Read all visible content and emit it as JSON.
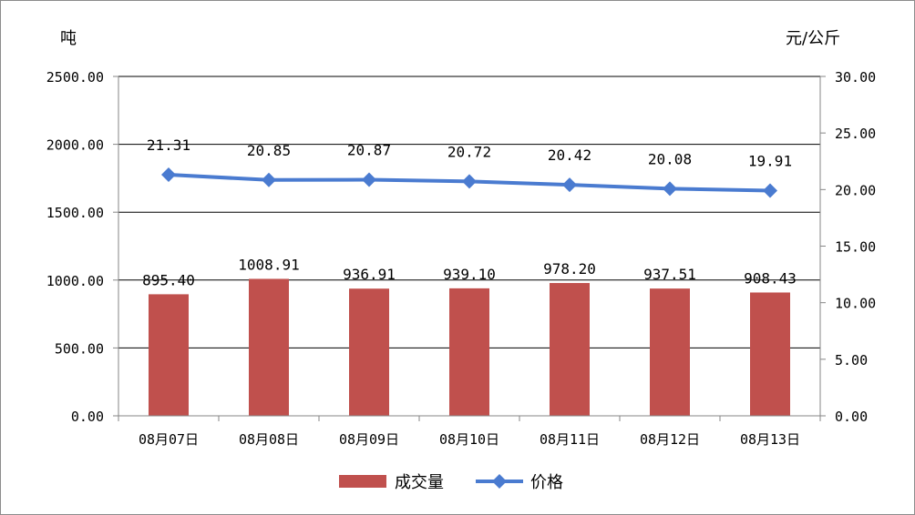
{
  "chart_data": {
    "type": "bar",
    "categories": [
      "08月07日",
      "08月08日",
      "08月09日",
      "08月10日",
      "08月11日",
      "08月12日",
      "08月13日"
    ],
    "series": [
      {
        "name": "成交量",
        "type": "bar",
        "axis": "left",
        "color": "#c0504d",
        "values": [
          895.4,
          1008.91,
          936.91,
          939.1,
          978.2,
          937.51,
          908.43
        ],
        "labels": [
          "895.40",
          "1008.91",
          "936.91",
          "939.10",
          "978.20",
          "937.51",
          "908.43"
        ]
      },
      {
        "name": "价格",
        "type": "line",
        "axis": "right",
        "color": "#4a7bd0",
        "marker": "diamond",
        "values": [
          21.31,
          20.85,
          20.87,
          20.72,
          20.42,
          20.08,
          19.91
        ],
        "labels": [
          "21.31",
          "20.85",
          "20.87",
          "20.72",
          "20.42",
          "20.08",
          "19.91"
        ]
      }
    ],
    "left_axis": {
      "unit": "吨",
      "ylim": [
        0,
        2500
      ],
      "ticks": [
        0,
        500,
        1000,
        1500,
        2000,
        2500
      ],
      "tick_labels": [
        "0.00",
        "500.00",
        "1000.00",
        "1500.00",
        "2000.00",
        "2500.00"
      ]
    },
    "right_axis": {
      "unit": "元/公斤",
      "ylim": [
        0,
        30
      ],
      "ticks": [
        0,
        5,
        10,
        15,
        20,
        25,
        30
      ],
      "tick_labels": [
        "0.00",
        "5.00",
        "10.00",
        "15.00",
        "20.00",
        "25.00",
        "30.00"
      ]
    },
    "grid": true,
    "legend_position": "bottom"
  }
}
